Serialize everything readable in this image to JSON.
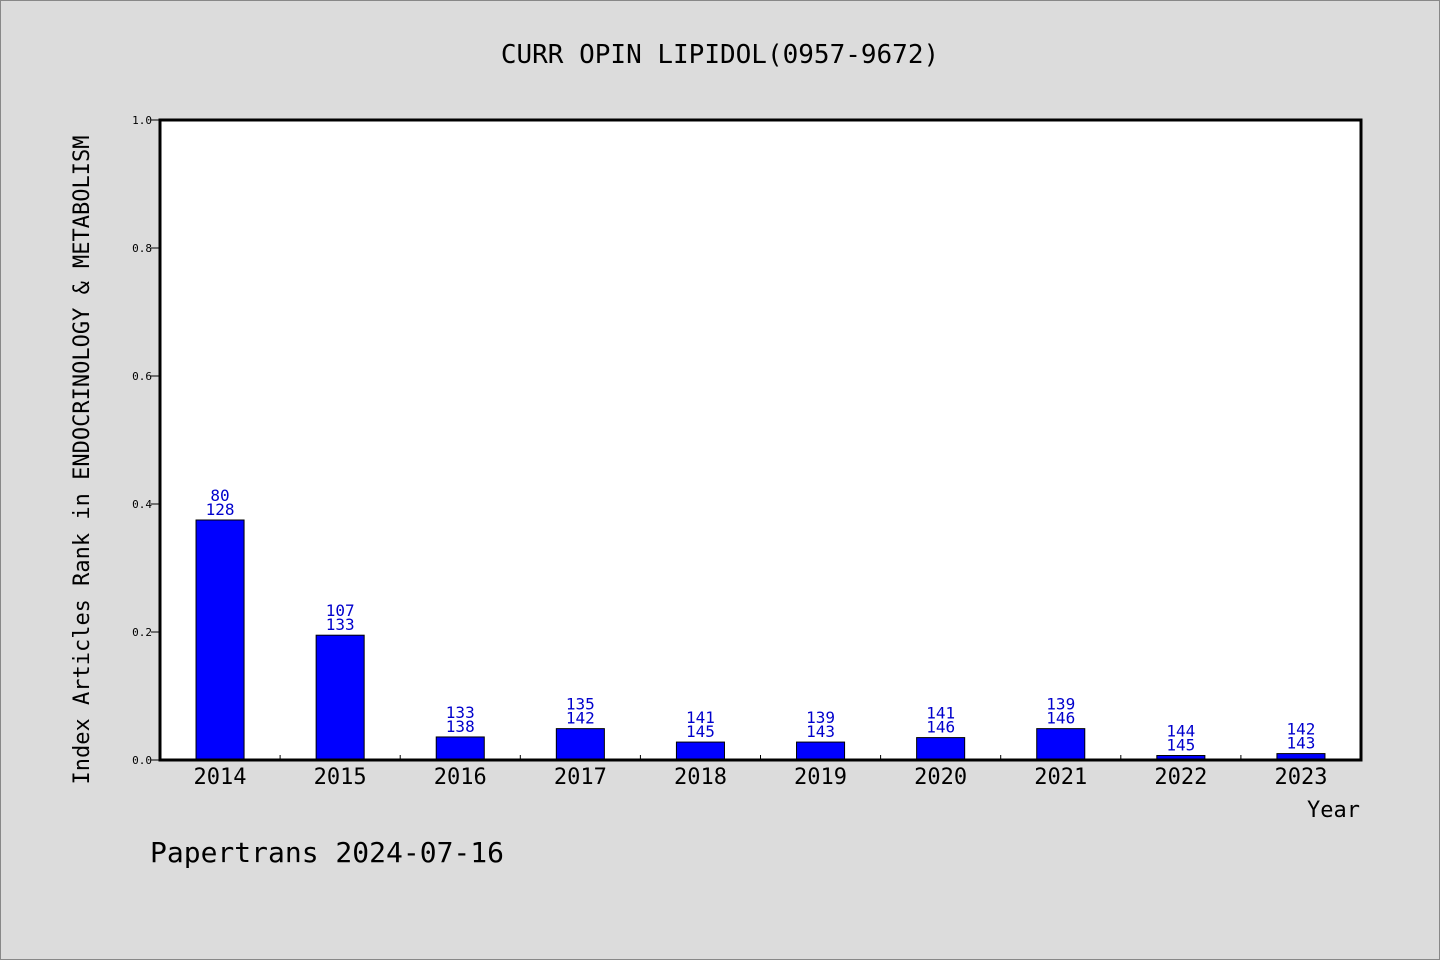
{
  "chart_data": {
    "type": "bar",
    "title": "CURR OPIN LIPIDOL(0957-9672)",
    "xlabel": "Year",
    "ylabel": "Index Articles Rank in ENDOCRINOLOGY & METABOLISM",
    "categories": [
      "2014",
      "2015",
      "2016",
      "2017",
      "2018",
      "2019",
      "2020",
      "2021",
      "2022",
      "2023"
    ],
    "values": [
      0.375,
      0.195,
      0.036,
      0.049,
      0.028,
      0.028,
      0.035,
      0.049,
      0.007,
      0.01
    ],
    "label_top": [
      "80",
      "107",
      "133",
      "135",
      "141",
      "139",
      "141",
      "139",
      "144",
      "142"
    ],
    "label_bottom": [
      "128",
      "133",
      "138",
      "142",
      "145",
      "143",
      "146",
      "146",
      "145",
      "143"
    ],
    "ylim": [
      0,
      1.0
    ],
    "yticks": [
      "0.0",
      "0.2",
      "0.4",
      "0.6",
      "0.8",
      "1.0"
    ],
    "grid": false,
    "bar_color": "#0000ff",
    "label_color": "#0000cc",
    "plot_background": "#ffffff",
    "page_background": "#dcdcdc"
  },
  "footer": "Papertrans 2024-07-16"
}
